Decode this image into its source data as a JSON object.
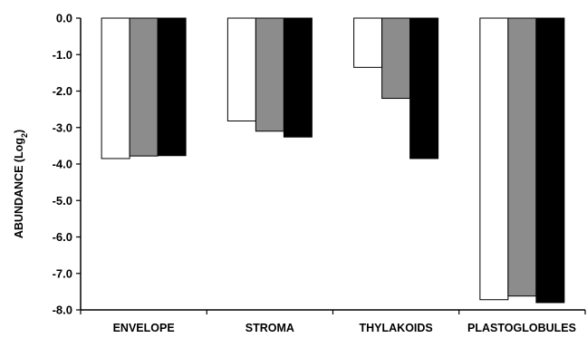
{
  "chart_data": {
    "type": "bar",
    "title": "",
    "xlabel": "",
    "ylabel": "ABUNDANCE  (Log",
    "ylabel_subscript": "2",
    "ylabel_suffix": ")",
    "ylim": [
      -8.0,
      0.0
    ],
    "yticks": [
      0.0,
      -1.0,
      -2.0,
      -3.0,
      -4.0,
      -5.0,
      -6.0,
      -7.0,
      -8.0
    ],
    "ytick_labels": [
      "0.0",
      "-1.0",
      "-2.0",
      "-3.0",
      "-4.0",
      "-5.0",
      "-6.0",
      "-7.0",
      "-8.0"
    ],
    "categories": [
      "ENVELOPE",
      "STROMA",
      "THYLAKOIDS",
      "PLASTOGLOBULES"
    ],
    "series": [
      {
        "color": "#ffffff",
        "values": [
          -3.85,
          -2.82,
          -1.35,
          -7.72
        ]
      },
      {
        "color": "#8c8c8c",
        "values": [
          -3.78,
          -3.1,
          -2.2,
          -7.62
        ]
      },
      {
        "color": "#000000",
        "values": [
          -3.77,
          -3.26,
          -3.85,
          -7.8
        ]
      }
    ],
    "grid": false,
    "legend": "none"
  }
}
